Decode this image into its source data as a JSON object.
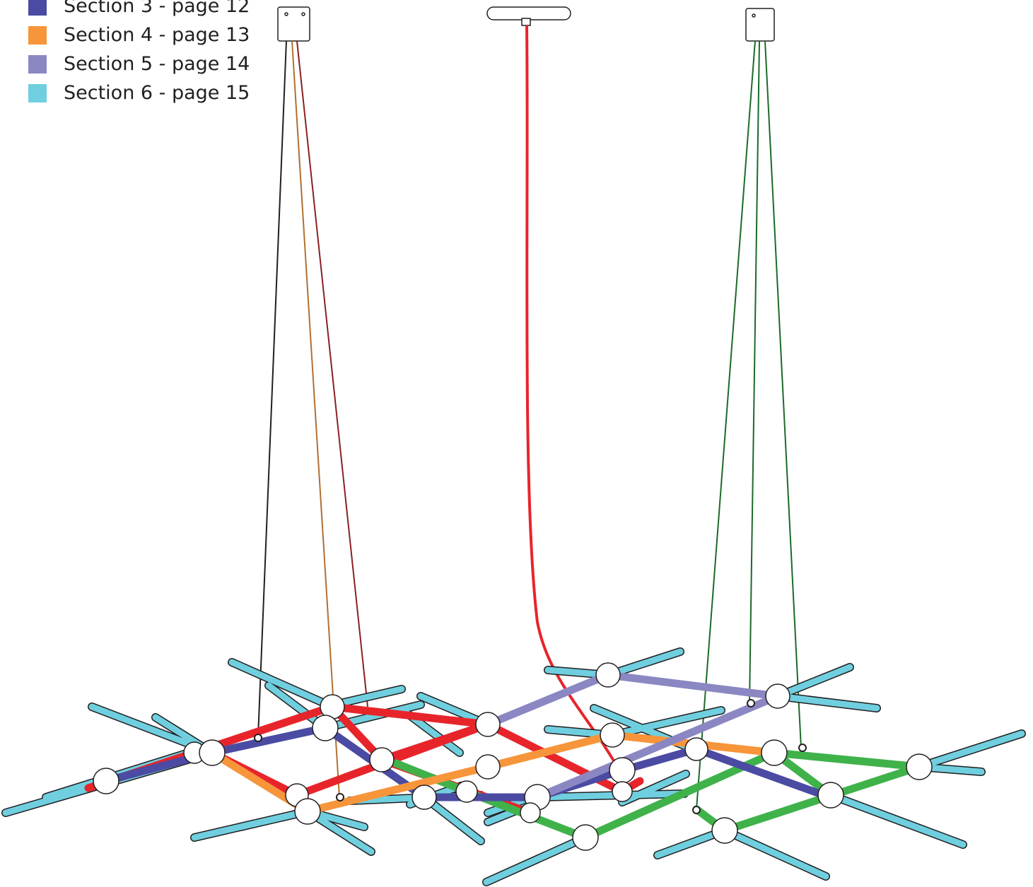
{
  "legend": {
    "items": [
      {
        "label": "Section 3 - page 12",
        "color": "#4b4ba3"
      },
      {
        "label": "Section 4 - page 13",
        "color": "#f7953a"
      },
      {
        "label": "Section 5 - page 14",
        "color": "#8b87c3"
      },
      {
        "label": "Section 6 - page 15",
        "color": "#6fcfdf"
      }
    ]
  },
  "colors": {
    "section_red": "#e8242b",
    "section_green": "#3fb24a",
    "section_3": "#4b4ba3",
    "section_4": "#f7953a",
    "section_5": "#8b87c3",
    "section_6": "#6fcfdf",
    "outline": "#231f20",
    "node_fill": "#ffffff"
  }
}
